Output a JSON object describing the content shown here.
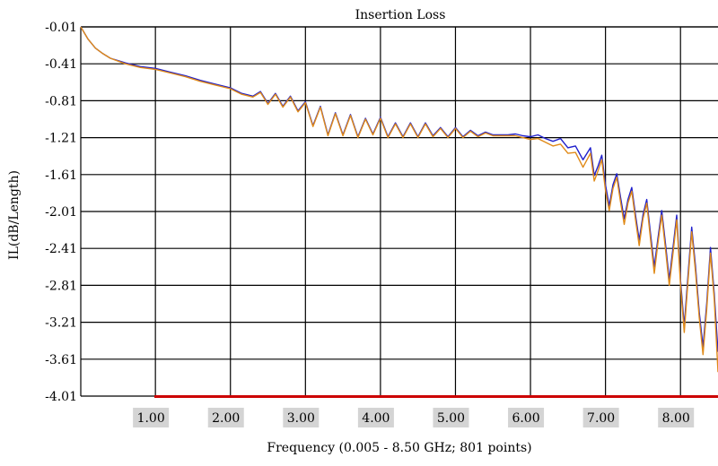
{
  "chart_data": {
    "type": "line",
    "title": "Insertion Loss",
    "xlabel": "Frequency (0.005 - 8.50 GHz; 801 points)",
    "ylabel": "IL(dB/Length)",
    "xlim": [
      0.005,
      8.5
    ],
    "ylim": [
      -4.01,
      -0.01
    ],
    "x_ticks": [
      "1.00",
      "2.00",
      "3.00",
      "4.00",
      "5.00",
      "6.00",
      "7.00",
      "8.00"
    ],
    "y_ticks": [
      "-0.01",
      "-0.41",
      "-0.81",
      "-1.21",
      "-1.61",
      "-2.01",
      "-2.41",
      "-2.81",
      "-3.21",
      "-3.61",
      "-4.01"
    ],
    "grid": true,
    "colors": {
      "series_blue": "#1f1fcc",
      "series_orange": "#e08a18",
      "baseline": "#cc0000",
      "tick_bg": "#d4d4d4"
    },
    "series": [
      {
        "x": [
          0.005,
          0.1,
          0.2,
          0.3,
          0.4,
          0.6,
          0.8,
          1.0,
          1.2,
          1.4,
          1.6,
          1.8,
          2.0,
          2.15,
          2.3,
          2.4,
          2.5,
          2.6,
          2.7,
          2.8,
          2.9,
          3.0,
          3.1,
          3.2,
          3.3,
          3.4,
          3.5,
          3.6,
          3.7,
          3.8,
          3.9,
          4.0,
          4.1,
          4.2,
          4.3,
          4.4,
          4.5,
          4.6,
          4.7,
          4.8,
          4.9,
          5.0,
          5.1,
          5.2,
          5.3,
          5.4,
          5.5,
          5.6,
          5.7,
          5.8,
          5.9,
          6.0,
          6.1,
          6.2,
          6.3,
          6.4,
          6.5,
          6.6,
          6.7,
          6.8,
          6.85,
          6.9,
          6.95,
          7.0,
          7.05,
          7.1,
          7.15,
          7.2,
          7.25,
          7.3,
          7.35,
          7.4,
          7.45,
          7.5,
          7.55,
          7.6,
          7.65,
          7.7,
          7.75,
          7.8,
          7.85,
          7.9,
          7.95,
          8.0,
          8.05,
          8.1,
          8.15,
          8.2,
          8.25,
          8.3,
          8.35,
          8.4,
          8.45,
          8.5
        ],
        "y": [
          -0.01,
          -0.14,
          -0.24,
          -0.3,
          -0.35,
          -0.4,
          -0.44,
          -0.46,
          -0.5,
          -0.54,
          -0.59,
          -0.63,
          -0.67,
          -0.73,
          -0.76,
          -0.71,
          -0.84,
          -0.73,
          -0.87,
          -0.76,
          -0.92,
          -0.82,
          -1.08,
          -0.87,
          -1.18,
          -0.94,
          -1.18,
          -0.96,
          -1.2,
          -1.0,
          -1.17,
          -0.99,
          -1.2,
          -1.05,
          -1.2,
          -1.05,
          -1.2,
          -1.05,
          -1.19,
          -1.1,
          -1.2,
          -1.1,
          -1.2,
          -1.13,
          -1.19,
          -1.15,
          -1.18,
          -1.18,
          -1.18,
          -1.17,
          -1.19,
          -1.2,
          -1.18,
          -1.22,
          -1.25,
          -1.22,
          -1.32,
          -1.3,
          -1.45,
          -1.32,
          -1.62,
          -1.52,
          -1.4,
          -1.72,
          -1.95,
          -1.72,
          -1.6,
          -1.85,
          -2.09,
          -1.88,
          -1.75,
          -2.05,
          -2.32,
          -2.05,
          -1.88,
          -2.25,
          -2.61,
          -2.3,
          -2.0,
          -2.36,
          -2.75,
          -2.4,
          -2.05,
          -2.75,
          -3.25,
          -2.7,
          -2.18,
          -2.6,
          -3.1,
          -3.48,
          -3.0,
          -2.4,
          -2.9,
          -3.53
        ]
      },
      {
        "x": [
          0.005,
          0.1,
          0.2,
          0.3,
          0.4,
          0.6,
          0.8,
          1.0,
          1.2,
          1.4,
          1.6,
          1.8,
          2.0,
          2.15,
          2.3,
          2.4,
          2.5,
          2.6,
          2.7,
          2.8,
          2.9,
          3.0,
          3.1,
          3.2,
          3.3,
          3.4,
          3.5,
          3.6,
          3.7,
          3.8,
          3.9,
          4.0,
          4.1,
          4.2,
          4.3,
          4.4,
          4.5,
          4.6,
          4.7,
          4.8,
          4.9,
          5.0,
          5.1,
          5.2,
          5.3,
          5.4,
          5.5,
          5.6,
          5.7,
          5.8,
          5.9,
          6.0,
          6.1,
          6.2,
          6.3,
          6.4,
          6.5,
          6.6,
          6.7,
          6.8,
          6.85,
          6.9,
          6.95,
          7.0,
          7.05,
          7.1,
          7.15,
          7.2,
          7.25,
          7.3,
          7.35,
          7.4,
          7.45,
          7.5,
          7.55,
          7.6,
          7.65,
          7.7,
          7.75,
          7.8,
          7.85,
          7.9,
          7.95,
          8.0,
          8.05,
          8.1,
          8.15,
          8.2,
          8.25,
          8.3,
          8.35,
          8.4,
          8.45,
          8.5
        ],
        "y": [
          -0.01,
          -0.14,
          -0.24,
          -0.3,
          -0.35,
          -0.41,
          -0.45,
          -0.47,
          -0.51,
          -0.55,
          -0.6,
          -0.64,
          -0.68,
          -0.74,
          -0.77,
          -0.72,
          -0.85,
          -0.74,
          -0.88,
          -0.77,
          -0.93,
          -0.83,
          -1.09,
          -0.88,
          -1.19,
          -0.95,
          -1.19,
          -0.97,
          -1.21,
          -1.01,
          -1.18,
          -1.0,
          -1.21,
          -1.06,
          -1.21,
          -1.06,
          -1.21,
          -1.06,
          -1.2,
          -1.11,
          -1.21,
          -1.11,
          -1.21,
          -1.14,
          -1.2,
          -1.16,
          -1.19,
          -1.19,
          -1.19,
          -1.19,
          -1.21,
          -1.23,
          -1.22,
          -1.26,
          -1.3,
          -1.28,
          -1.38,
          -1.37,
          -1.53,
          -1.38,
          -1.68,
          -1.57,
          -1.45,
          -1.78,
          -2.0,
          -1.76,
          -1.64,
          -1.9,
          -2.15,
          -1.92,
          -1.79,
          -2.1,
          -2.38,
          -2.09,
          -1.92,
          -2.31,
          -2.68,
          -2.35,
          -2.05,
          -2.42,
          -2.81,
          -2.46,
          -2.1,
          -2.8,
          -3.32,
          -2.76,
          -2.23,
          -2.66,
          -3.16,
          -3.56,
          -3.06,
          -2.46,
          -2.96,
          -3.75
        ]
      }
    ]
  }
}
